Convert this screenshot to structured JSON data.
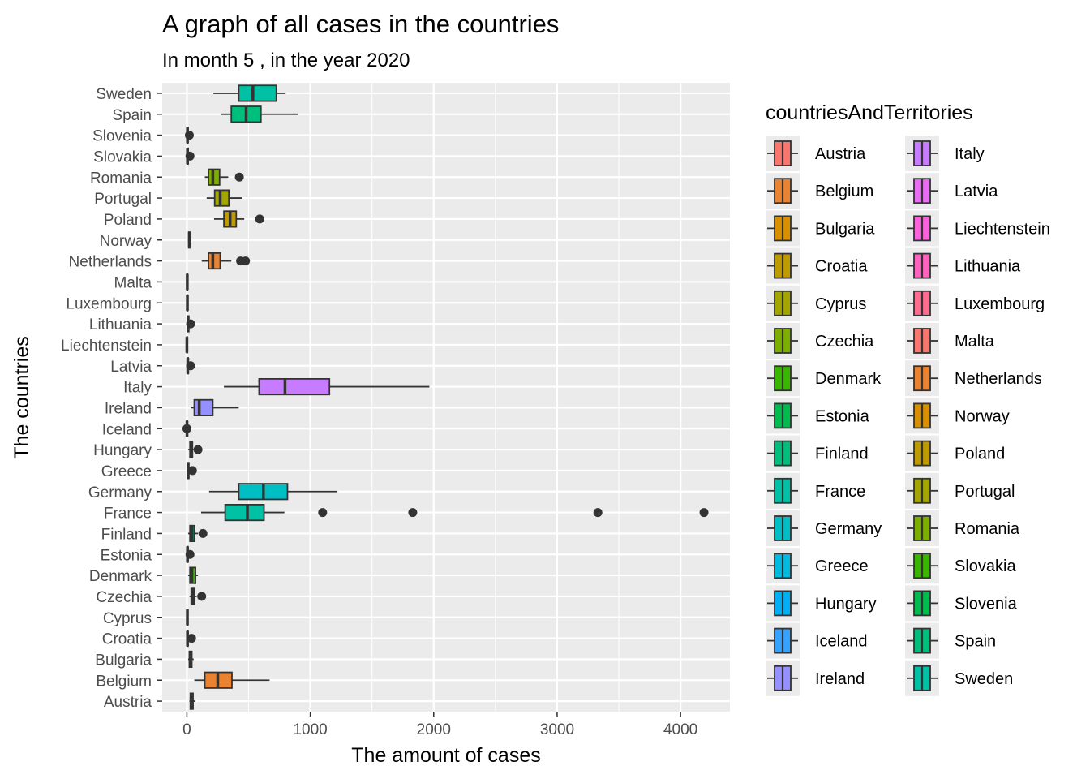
{
  "chart_data": {
    "type": "boxplot",
    "orientation": "horizontal",
    "title": "A graph of all cases in the countries",
    "subtitle": "In month 5 , in the year 2020",
    "xlabel": "The amount of cases",
    "ylabel": "The countries",
    "xlim": [
      -200,
      4400
    ],
    "x_ticks": [
      0,
      1000,
      2000,
      3000,
      4000
    ],
    "grid": true,
    "legend": {
      "title": "countriesAndTerritories",
      "position": "right",
      "columns": 2
    },
    "categories": [
      "Austria",
      "Belgium",
      "Bulgaria",
      "Croatia",
      "Cyprus",
      "Czechia",
      "Denmark",
      "Estonia",
      "Finland",
      "France",
      "Germany",
      "Greece",
      "Hungary",
      "Iceland",
      "Ireland",
      "Italy",
      "Latvia",
      "Liechtenstein",
      "Lithuania",
      "Luxembourg",
      "Malta",
      "Netherlands",
      "Norway",
      "Poland",
      "Portugal",
      "Romania",
      "Slovakia",
      "Slovenia",
      "Spain",
      "Sweden"
    ],
    "colors": [
      "#F8766D",
      "#EA8331",
      "#D89000",
      "#C09B00",
      "#A3A500",
      "#7CAE00",
      "#39B600",
      "#00BB4E",
      "#00BF7D",
      "#00C1A3",
      "#00BFC4",
      "#00BAE0",
      "#00B0F6",
      "#35A2FF",
      "#9590FF",
      "#C77CFF",
      "#E76BF3",
      "#FA62DB",
      "#FF62BC",
      "#FF6C90",
      "#F8766D",
      "#EA8331",
      "#D89000",
      "#C09B00",
      "#A3A500",
      "#7CAE00",
      "#39B600",
      "#00BB4E",
      "#00BF7D",
      "#00C1A3"
    ],
    "boxes": [
      {
        "country": "Austria",
        "whisker_low": 20,
        "q1": 28,
        "median": 40,
        "q3": 50,
        "whisker_high": 65,
        "outliers": []
      },
      {
        "country": "Belgium",
        "whisker_low": 60,
        "q1": 145,
        "median": 250,
        "q3": 365,
        "whisker_high": 670,
        "outliers": []
      },
      {
        "country": "Bulgaria",
        "whisker_low": 10,
        "q1": 20,
        "median": 30,
        "q3": 40,
        "whisker_high": 55,
        "outliers": []
      },
      {
        "country": "Croatia",
        "whisker_low": 0,
        "q1": 2,
        "median": 5,
        "q3": 9,
        "whisker_high": 18,
        "outliers": [
          38
        ]
      },
      {
        "country": "Cyprus",
        "whisker_low": 0,
        "q1": 2,
        "median": 4,
        "q3": 7,
        "whisker_high": 12,
        "outliers": []
      },
      {
        "country": "Czechia",
        "whisker_low": 20,
        "q1": 35,
        "median": 45,
        "q3": 60,
        "whisker_high": 80,
        "outliers": [
          120
        ]
      },
      {
        "country": "Denmark",
        "whisker_low": 10,
        "q1": 25,
        "median": 40,
        "q3": 70,
        "whisker_high": 90,
        "outliers": []
      },
      {
        "country": "Estonia",
        "whisker_low": 0,
        "q1": 2,
        "median": 5,
        "q3": 8,
        "whisker_high": 15,
        "outliers": [
          25
        ]
      },
      {
        "country": "Finland",
        "whisker_low": 10,
        "q1": 25,
        "median": 40,
        "q3": 60,
        "whisker_high": 90,
        "outliers": [
          130
        ]
      },
      {
        "country": "France",
        "whisker_low": 115,
        "q1": 310,
        "median": 490,
        "q3": 625,
        "whisker_high": 790,
        "outliers": [
          1100,
          1830,
          3330,
          4190
        ]
      },
      {
        "country": "Germany",
        "whisker_low": 180,
        "q1": 420,
        "median": 620,
        "q3": 815,
        "whisker_high": 1220,
        "outliers": []
      },
      {
        "country": "Greece",
        "whisker_low": 0,
        "q1": 4,
        "median": 10,
        "q3": 16,
        "whisker_high": 25,
        "outliers": [
          45
        ]
      },
      {
        "country": "Hungary",
        "whisker_low": 10,
        "q1": 25,
        "median": 35,
        "q3": 45,
        "whisker_high": 60,
        "outliers": [
          90
        ]
      },
      {
        "country": "Iceland",
        "whisker_low": 0,
        "q1": 0,
        "median": 1,
        "q3": 2,
        "whisker_high": 4,
        "outliers": [
          0
        ]
      },
      {
        "country": "Ireland",
        "whisker_low": 30,
        "q1": 60,
        "median": 100,
        "q3": 210,
        "whisker_high": 420,
        "outliers": []
      },
      {
        "country": "Italy",
        "whisker_low": 300,
        "q1": 585,
        "median": 795,
        "q3": 1155,
        "whisker_high": 1965,
        "outliers": []
      },
      {
        "country": "Latvia",
        "whisker_low": 0,
        "q1": 3,
        "median": 7,
        "q3": 11,
        "whisker_high": 18,
        "outliers": [
          30
        ]
      },
      {
        "country": "Liechtenstein",
        "whisker_low": 0,
        "q1": 0,
        "median": 0,
        "q3": 0,
        "whisker_high": 0,
        "outliers": []
      },
      {
        "country": "Lithuania",
        "whisker_low": 0,
        "q1": 5,
        "median": 10,
        "q3": 15,
        "whisker_high": 22,
        "outliers": [
          30
        ]
      },
      {
        "country": "Luxembourg",
        "whisker_low": 0,
        "q1": 2,
        "median": 4,
        "q3": 6,
        "whisker_high": 10,
        "outliers": []
      },
      {
        "country": "Malta",
        "whisker_low": 0,
        "q1": 1,
        "median": 3,
        "q3": 5,
        "whisker_high": 8,
        "outliers": []
      },
      {
        "country": "Netherlands",
        "whisker_low": 120,
        "q1": 175,
        "median": 210,
        "q3": 270,
        "whisker_high": 360,
        "outliers": [
          435,
          475
        ]
      },
      {
        "country": "Norway",
        "whisker_low": 10,
        "q1": 15,
        "median": 20,
        "q3": 25,
        "whisker_high": 35,
        "outliers": []
      },
      {
        "country": "Poland",
        "whisker_low": 220,
        "q1": 300,
        "median": 350,
        "q3": 400,
        "whisker_high": 465,
        "outliers": [
          590
        ]
      },
      {
        "country": "Portugal",
        "whisker_low": 160,
        "q1": 225,
        "median": 270,
        "q3": 340,
        "whisker_high": 450,
        "outliers": []
      },
      {
        "country": "Romania",
        "whisker_low": 145,
        "q1": 175,
        "median": 210,
        "q3": 265,
        "whisker_high": 335,
        "outliers": [
          425
        ]
      },
      {
        "country": "Slovakia",
        "whisker_low": 0,
        "q1": 2,
        "median": 5,
        "q3": 10,
        "whisker_high": 18,
        "outliers": [
          25
        ]
      },
      {
        "country": "Slovenia",
        "whisker_low": 0,
        "q1": 2,
        "median": 5,
        "q3": 8,
        "whisker_high": 14,
        "outliers": [
          20
        ]
      },
      {
        "country": "Spain",
        "whisker_low": 280,
        "q1": 360,
        "median": 480,
        "q3": 600,
        "whisker_high": 900,
        "outliers": []
      },
      {
        "country": "Sweden",
        "whisker_low": 215,
        "q1": 420,
        "median": 535,
        "q3": 725,
        "whisker_high": 800,
        "outliers": []
      }
    ]
  }
}
